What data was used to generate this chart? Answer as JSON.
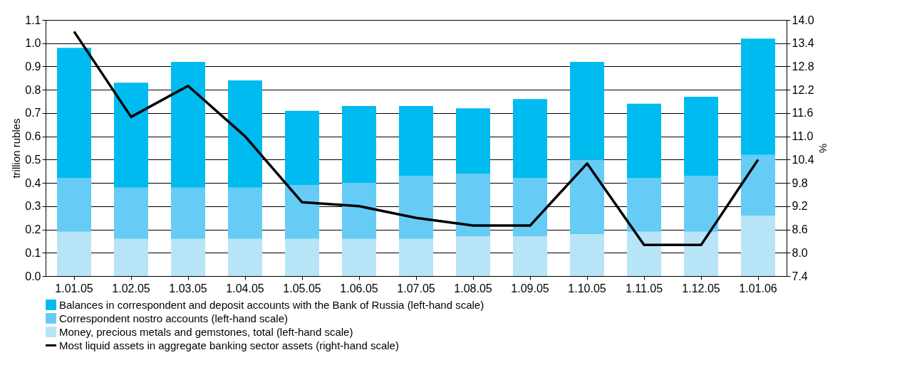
{
  "chart_data": {
    "type": "bar",
    "stacked": true,
    "categories": [
      "1.01.05",
      "1.02.05",
      "1.03.05",
      "1.04.05",
      "1.05.05",
      "1.06.05",
      "1.07.05",
      "1.08.05",
      "1.09.05",
      "1.10.05",
      "1.11.05",
      "1.12.05",
      "1.01.06"
    ],
    "series": [
      {
        "name": "Money, precious metals and gemstones, total (left-hand scale)",
        "color": "#b8e4f8",
        "values": [
          0.19,
          0.16,
          0.16,
          0.16,
          0.16,
          0.16,
          0.16,
          0.17,
          0.17,
          0.18,
          0.19,
          0.19,
          0.26
        ]
      },
      {
        "name": "Correspondent nostro accounts (left-hand scale)",
        "color": "#66ccf5",
        "values": [
          0.23,
          0.22,
          0.22,
          0.22,
          0.23,
          0.24,
          0.27,
          0.27,
          0.25,
          0.32,
          0.23,
          0.24,
          0.26
        ]
      },
      {
        "name": "Balances in correspondent and deposit accounts with the Bank of Russia (left-hand scale)",
        "color": "#00bbf0",
        "values": [
          0.56,
          0.45,
          0.54,
          0.46,
          0.32,
          0.33,
          0.3,
          0.28,
          0.34,
          0.42,
          0.32,
          0.34,
          0.5
        ]
      },
      {
        "name": "Most liquid assets in aggregate banking sector assets (right-hand scale)",
        "type": "line",
        "axis": "y2",
        "color": "#000000",
        "values": [
          13.7,
          11.5,
          12.3,
          11.0,
          9.3,
          9.2,
          8.9,
          8.7,
          8.7,
          10.3,
          8.2,
          8.2,
          10.4
        ]
      }
    ],
    "ylabel": "trillion rubles",
    "y2label": "%",
    "ylim": [
      0,
      1.1
    ],
    "yticks": [
      {
        "value": 0,
        "label": "0.0"
      },
      0.1,
      0.2,
      0.3,
      0.4,
      0.5,
      0.6,
      0.7,
      0.8,
      0.9,
      {
        "value": 1,
        "label": "1.0"
      },
      1.1
    ],
    "y2lim": [
      7.4,
      14.0
    ],
    "y2ticks": [
      7.4,
      {
        "value": 8,
        "label": "8.0"
      },
      8.6,
      9.2,
      9.8,
      10.4,
      {
        "value": 11,
        "label": "11.0"
      },
      11.6,
      12.2,
      12.8,
      13.4,
      {
        "value": 14,
        "label": "14.0"
      }
    ],
    "grid": "y",
    "legend": "bottom"
  }
}
